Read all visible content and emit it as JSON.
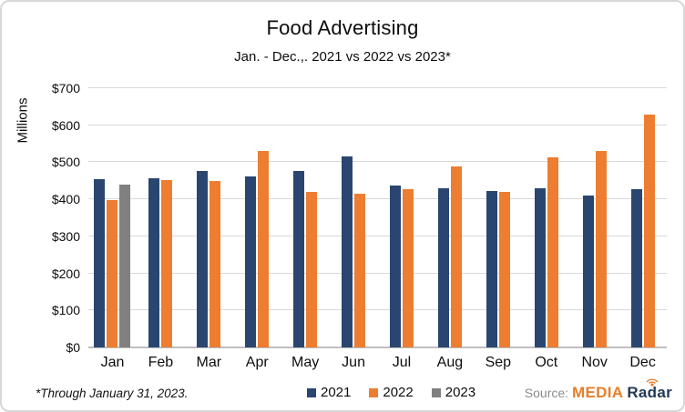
{
  "title": "Food Advertising",
  "subtitle": "Jan. - Dec.,. 2021 vs 2022 vs 2023*",
  "y_axis_title": "Millions",
  "footnote": "*Through January 31, 2023.",
  "source": {
    "label": "Source:",
    "brand_media": "MEDIA",
    "brand_radar": "Radar"
  },
  "colors": {
    "series_2021": "#2a4670",
    "series_2022": "#ed7d31",
    "series_2023": "#808080",
    "gridline": "#d9d9d9",
    "axis_line": "#bfbfbf",
    "brand_orange": "#e87e2b",
    "brand_navy": "#233a57",
    "source_gray": "#8c8c8c"
  },
  "chart_data": {
    "type": "bar",
    "title": "Food Advertising",
    "subtitle": "Jan. - Dec.,. 2021 vs 2022 vs 2023*",
    "xlabel": "",
    "ylabel": "Millions",
    "ylim": [
      0,
      700
    ],
    "grid": true,
    "legend_position": "bottom",
    "y_ticks": [
      "$0",
      "$100",
      "$200",
      "$300",
      "$400",
      "$500",
      "$600",
      "$700"
    ],
    "categories": [
      "Jan",
      "Feb",
      "Mar",
      "Apr",
      "May",
      "Jun",
      "Jul",
      "Aug",
      "Sep",
      "Oct",
      "Nov",
      "Dec"
    ],
    "series": [
      {
        "name": "2021",
        "color": "#2a4670",
        "values": [
          455,
          456,
          477,
          462,
          476,
          517,
          438,
          430,
          423,
          430,
          411,
          427
        ]
      },
      {
        "name": "2022",
        "color": "#ed7d31",
        "values": [
          399,
          452,
          450,
          530,
          419,
          415,
          428,
          489,
          419,
          513,
          530,
          629
        ]
      },
      {
        "name": "2023",
        "color": "#808080",
        "values": [
          440,
          null,
          null,
          null,
          null,
          null,
          null,
          null,
          null,
          null,
          null,
          null
        ]
      }
    ]
  }
}
